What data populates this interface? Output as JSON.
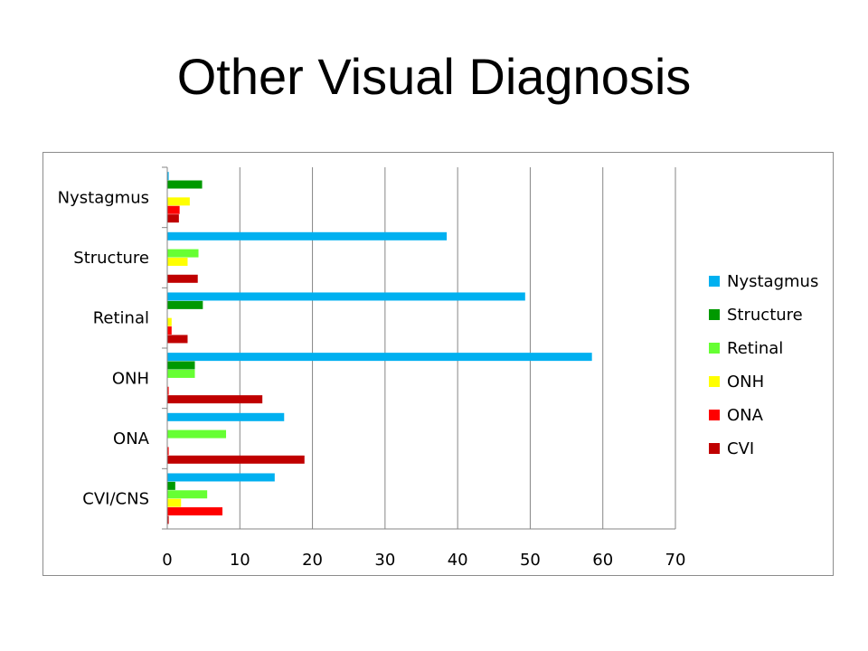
{
  "slide": {
    "title": "Other Visual Diagnosis"
  },
  "chart_data": {
    "type": "bar",
    "orientation": "horizontal",
    "categories": [
      "Nystagmus",
      "Structure",
      "Retinal",
      "ONH",
      "ONA",
      "CVI/CNS"
    ],
    "series": [
      {
        "name": "Nystagmus",
        "color": "#00B0F0",
        "values": [
          0.2,
          38.5,
          49.3,
          58.5,
          16.1,
          14.8
        ]
      },
      {
        "name": "Structure",
        "color": "#009900",
        "values": [
          4.8,
          0,
          4.9,
          3.8,
          0,
          1.1
        ]
      },
      {
        "name": "Retinal",
        "color": "#66FF33",
        "values": [
          0,
          4.3,
          0,
          3.8,
          8.1,
          5.5
        ]
      },
      {
        "name": "ONH",
        "color": "#FFFF00",
        "values": [
          3.1,
          2.8,
          0.6,
          0,
          0,
          1.9
        ]
      },
      {
        "name": "ONA",
        "color": "#FF0000",
        "values": [
          1.7,
          0,
          0.6,
          0.2,
          0.2,
          7.6
        ]
      },
      {
        "name": "CVI",
        "color": "#C00000",
        "values": [
          1.6,
          4.2,
          2.8,
          13.1,
          18.9,
          0.2
        ]
      }
    ],
    "xlim": [
      0,
      70
    ],
    "xticks": [
      0,
      10,
      20,
      30,
      40,
      50,
      60,
      70
    ],
    "grid": "vertical",
    "legend_position": "right"
  }
}
